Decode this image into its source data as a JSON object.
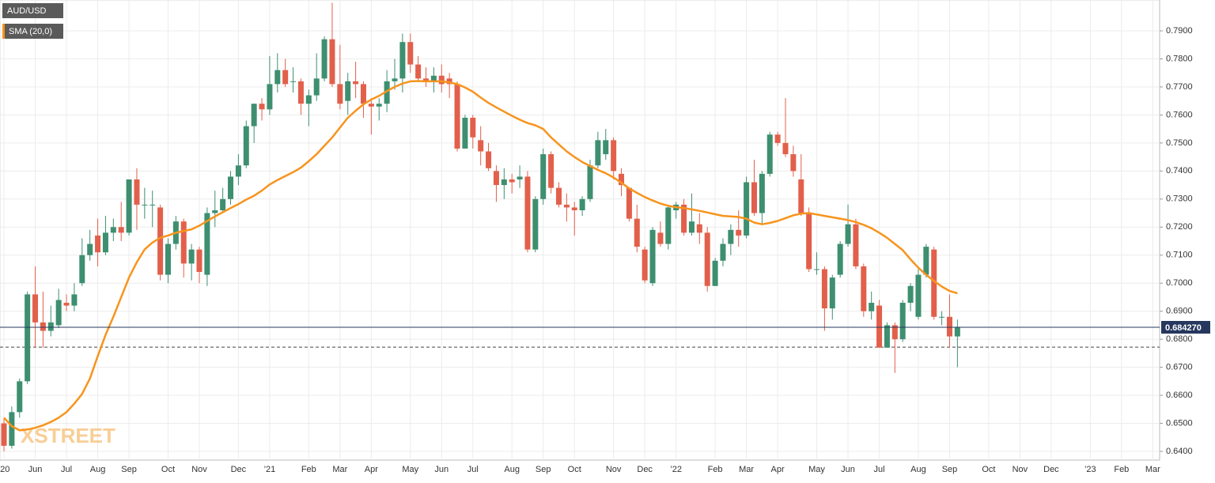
{
  "chart_data": {
    "type": "candlestick",
    "categories": [
      "’20",
      null,
      null,
      null,
      "Jun",
      null,
      null,
      null,
      "Jul",
      null,
      null,
      null,
      "Aug",
      null,
      null,
      null,
      "Sep",
      null,
      null,
      null,
      null,
      "Oct",
      null,
      null,
      null,
      "Nov",
      null,
      null,
      null,
      null,
      "Dec",
      null,
      null,
      null,
      "’21",
      null,
      null,
      null,
      null,
      "Feb",
      null,
      null,
      null,
      "Mar",
      null,
      null,
      null,
      "Apr",
      null,
      null,
      null,
      null,
      "May",
      null,
      null,
      null,
      "Jun",
      null,
      null,
      null,
      "Jul",
      null,
      null,
      null,
      null,
      "Aug",
      null,
      null,
      null,
      "Sep",
      null,
      null,
      null,
      "Oct",
      null,
      null,
      null,
      null,
      "Nov",
      null,
      null,
      null,
      "Dec",
      null,
      null,
      null,
      "’22",
      null,
      null,
      null,
      null,
      "Feb",
      null,
      null,
      null,
      "Mar",
      null,
      null,
      null,
      "Apr",
      null,
      null,
      null,
      null,
      "May",
      null,
      null,
      null,
      "Jun",
      null,
      null,
      null,
      "Jul",
      null,
      null,
      null,
      null,
      "Aug",
      null,
      null,
      null,
      "Sep",
      null,
      null,
      null,
      null,
      "Oct",
      null,
      null,
      null,
      "Nov",
      null,
      null,
      null,
      "Dec",
      null,
      null,
      null,
      null,
      "’23",
      null,
      null,
      null,
      "Feb",
      null,
      null,
      null,
      "Mar"
    ],
    "series": [
      {
        "name": "AUD/USD",
        "type": "candlestick",
        "up_color": "#3d8f70",
        "down_color": "#e2604b",
        "open": [
          0.65,
          0.642,
          0.654,
          0.665,
          0.696,
          0.686,
          0.683,
          0.685,
          0.693,
          0.692,
          0.7,
          0.71,
          0.717,
          0.711,
          0.718,
          0.72,
          0.718,
          0.737,
          0.728,
          0.728,
          0.727,
          0.703,
          0.714,
          0.722,
          0.707,
          0.712,
          0.703,
          0.725,
          0.726,
          0.73,
          0.738,
          0.742,
          0.756,
          0.764,
          0.762,
          0.771,
          0.776,
          0.772,
          0.772,
          0.764,
          0.767,
          0.773,
          0.787,
          0.771,
          0.765,
          0.772,
          0.771,
          0.764,
          0.763,
          0.764,
          0.772,
          0.773,
          0.786,
          0.778,
          0.773,
          0.772,
          0.774,
          0.773,
          0.771,
          0.748,
          0.759,
          0.751,
          0.747,
          0.74,
          0.735,
          0.737,
          0.737,
          0.738,
          0.712,
          0.73,
          0.746,
          0.734,
          0.728,
          0.727,
          0.726,
          0.73,
          0.742,
          0.746,
          0.751,
          0.739,
          0.734,
          0.723,
          0.712,
          0.7,
          0.718,
          0.714,
          0.726,
          0.728,
          0.718,
          0.721,
          0.718,
          0.699,
          0.708,
          0.714,
          0.719,
          0.717,
          0.736,
          0.725,
          0.739,
          0.753,
          0.75,
          0.746,
          0.737,
          0.725,
          0.705,
          0.705,
          0.691,
          0.703,
          0.714,
          0.721,
          0.706,
          0.69,
          0.692,
          0.677,
          0.685,
          0.68,
          0.693,
          0.688,
          0.703,
          0.712,
          0.688,
          0.688,
          0.681,
          null,
          null,
          null,
          null,
          null,
          null,
          null,
          null,
          null,
          null,
          null,
          null,
          null,
          null,
          null,
          null,
          null,
          null,
          null,
          null,
          null,
          null,
          null,
          null,
          null
        ],
        "high": [
          0.652,
          0.656,
          0.666,
          0.697,
          0.706,
          0.697,
          0.692,
          0.698,
          0.696,
          0.7,
          0.716,
          0.719,
          0.723,
          0.724,
          0.723,
          0.729,
          0.737,
          0.741,
          0.734,
          0.733,
          0.728,
          0.716,
          0.724,
          0.723,
          0.714,
          0.713,
          0.727,
          0.733,
          0.734,
          0.74,
          0.746,
          0.758,
          0.764,
          0.766,
          0.781,
          0.782,
          0.78,
          0.777,
          0.773,
          0.769,
          0.782,
          0.788,
          0.8,
          0.785,
          0.775,
          0.779,
          0.772,
          0.766,
          0.766,
          0.776,
          0.78,
          0.789,
          0.789,
          0.781,
          0.777,
          0.777,
          0.778,
          0.775,
          0.772,
          0.76,
          0.76,
          0.756,
          0.75,
          0.742,
          0.741,
          0.739,
          0.742,
          0.74,
          0.731,
          0.748,
          0.747,
          0.736,
          0.732,
          0.729,
          0.731,
          0.744,
          0.754,
          0.755,
          0.752,
          0.741,
          0.734,
          0.728,
          0.713,
          0.72,
          0.722,
          0.728,
          0.729,
          0.73,
          0.732,
          0.725,
          0.72,
          0.709,
          0.716,
          0.721,
          0.726,
          0.738,
          0.744,
          0.74,
          0.754,
          0.754,
          0.766,
          0.749,
          0.746,
          0.727,
          0.711,
          0.706,
          0.703,
          0.715,
          0.728,
          0.723,
          0.707,
          0.697,
          0.694,
          0.686,
          0.686,
          0.694,
          0.7,
          0.705,
          0.714,
          0.713,
          0.69,
          0.696,
          0.687,
          null,
          null,
          null,
          null,
          null,
          null,
          null,
          null,
          null,
          null,
          null,
          null,
          null,
          null,
          null,
          null,
          null,
          null,
          null,
          null,
          null,
          null,
          null,
          null,
          null
        ],
        "low": [
          0.64,
          0.641,
          0.652,
          0.664,
          0.677,
          0.677,
          0.681,
          0.684,
          0.69,
          0.69,
          0.699,
          0.708,
          0.706,
          0.71,
          0.715,
          0.715,
          0.717,
          0.719,
          0.723,
          0.72,
          0.701,
          0.7,
          0.712,
          0.702,
          0.701,
          0.7,
          0.699,
          0.72,
          0.725,
          0.728,
          0.735,
          0.741,
          0.75,
          0.758,
          0.76,
          0.768,
          0.77,
          0.768,
          0.76,
          0.756,
          0.765,
          0.772,
          0.77,
          0.762,
          0.76,
          0.766,
          0.759,
          0.753,
          0.758,
          0.761,
          0.769,
          0.768,
          0.775,
          0.772,
          0.77,
          0.768,
          0.768,
          0.766,
          0.747,
          0.748,
          0.748,
          0.742,
          0.74,
          0.729,
          0.73,
          0.732,
          0.734,
          0.711,
          0.711,
          0.728,
          0.732,
          0.727,
          0.722,
          0.717,
          0.724,
          0.729,
          0.741,
          0.744,
          0.737,
          0.731,
          0.722,
          0.711,
          0.7,
          0.699,
          0.713,
          0.712,
          0.723,
          0.717,
          0.717,
          0.714,
          0.697,
          0.699,
          0.706,
          0.71,
          0.713,
          0.716,
          0.724,
          0.721,
          0.738,
          0.749,
          0.745,
          0.738,
          0.724,
          0.704,
          0.703,
          0.683,
          0.687,
          0.702,
          0.713,
          0.705,
          0.688,
          0.687,
          0.677,
          0.677,
          0.668,
          0.679,
          0.69,
          0.687,
          0.702,
          0.687,
          0.685,
          0.677,
          0.67,
          null,
          null,
          null,
          null,
          null,
          null,
          null,
          null,
          null,
          null,
          null,
          null,
          null,
          null,
          null,
          null,
          null,
          null,
          null,
          null,
          null,
          null,
          null,
          null,
          null
        ],
        "close": [
          0.642,
          0.654,
          0.665,
          0.696,
          0.686,
          0.683,
          0.686,
          0.694,
          0.692,
          0.696,
          0.71,
          0.714,
          0.711,
          0.718,
          0.72,
          0.718,
          0.737,
          0.728,
          0.728,
          0.728,
          0.703,
          0.714,
          0.722,
          0.707,
          0.712,
          0.704,
          0.725,
          0.726,
          0.73,
          0.738,
          0.742,
          0.756,
          0.764,
          0.762,
          0.771,
          0.776,
          0.771,
          0.772,
          0.764,
          0.767,
          0.773,
          0.787,
          0.771,
          0.764,
          0.772,
          0.771,
          0.764,
          0.763,
          0.764,
          0.772,
          0.773,
          0.786,
          0.778,
          0.773,
          0.772,
          0.774,
          0.771,
          0.771,
          0.748,
          0.759,
          0.752,
          0.747,
          0.741,
          0.735,
          0.737,
          0.736,
          0.738,
          0.712,
          0.73,
          0.746,
          0.734,
          0.728,
          0.727,
          0.726,
          0.73,
          0.742,
          0.751,
          0.751,
          0.74,
          0.735,
          0.723,
          0.713,
          0.701,
          0.719,
          0.714,
          0.727,
          0.728,
          0.718,
          0.722,
          0.718,
          0.699,
          0.708,
          0.714,
          0.719,
          0.717,
          0.736,
          0.725,
          0.739,
          0.753,
          0.75,
          0.746,
          0.74,
          0.725,
          0.705,
          0.705,
          0.691,
          0.702,
          0.714,
          0.721,
          0.706,
          0.69,
          0.693,
          0.677,
          0.685,
          0.68,
          0.693,
          0.699,
          0.703,
          0.713,
          0.688,
          0.688,
          0.681,
          0.68427,
          null,
          null,
          null,
          null,
          null,
          null,
          null,
          null,
          null,
          null,
          null,
          null,
          null,
          null,
          null,
          null,
          null,
          null,
          null,
          null,
          null,
          null,
          null,
          null,
          null
        ]
      },
      {
        "name": "SMA (20,0)",
        "type": "line",
        "color": "#f7941d",
        "values": [
          0.652,
          0.649,
          0.6475,
          0.6478,
          0.6484,
          0.6493,
          0.6505,
          0.652,
          0.654,
          0.657,
          0.6605,
          0.666,
          0.674,
          0.6815,
          0.688,
          0.695,
          0.702,
          0.7075,
          0.712,
          0.7145,
          0.7162,
          0.717,
          0.718,
          0.7186,
          0.7192,
          0.7205,
          0.7222,
          0.7238,
          0.7253,
          0.7268,
          0.7282,
          0.7298,
          0.7312,
          0.733,
          0.7352,
          0.7368,
          0.7382,
          0.7396,
          0.7412,
          0.7435,
          0.746,
          0.749,
          0.752,
          0.7555,
          0.759,
          0.7615,
          0.7638,
          0.7655,
          0.7668,
          0.7685,
          0.77,
          0.7712,
          0.772,
          0.7721,
          0.772,
          0.772,
          0.772,
          0.7716,
          0.771,
          0.7698,
          0.7683,
          0.7662,
          0.7643,
          0.7627,
          0.7612,
          0.7597,
          0.7583,
          0.7571,
          0.7563,
          0.755,
          0.752,
          0.7495,
          0.747,
          0.745,
          0.7432,
          0.7418,
          0.7404,
          0.7392,
          0.7377,
          0.7358,
          0.7338,
          0.7322,
          0.7307,
          0.7295,
          0.7284,
          0.7276,
          0.7271,
          0.7268,
          0.7263,
          0.7258,
          0.7252,
          0.7246,
          0.724,
          0.7238,
          0.7236,
          0.723,
          0.7216,
          0.721,
          0.7215,
          0.7222,
          0.7232,
          0.7242,
          0.7248,
          0.725,
          0.7245,
          0.724,
          0.7235,
          0.723,
          0.7225,
          0.7218,
          0.7208,
          0.7196,
          0.718,
          0.7162,
          0.714,
          0.7118,
          0.7085,
          0.7055,
          0.703,
          0.7008,
          0.6988,
          0.6972,
          0.6964,
          null,
          null,
          null,
          null,
          null,
          null,
          null,
          null,
          null,
          null,
          null,
          null,
          null,
          null,
          null,
          null,
          null,
          null,
          null,
          null,
          null,
          null,
          null,
          null,
          null
        ]
      }
    ],
    "ylim": [
      0.6369,
      0.801
    ],
    "yticks": [
      {
        "value": 0.64,
        "label": "0.6400"
      },
      {
        "value": 0.65,
        "label": "0.6500"
      },
      {
        "value": 0.66,
        "label": "0.6600"
      },
      {
        "value": 0.67,
        "label": "0.6700"
      },
      {
        "value": 0.68,
        "label": "0.6800"
      },
      {
        "value": 0.69,
        "label": "0.6900"
      },
      {
        "value": 0.7,
        "label": "0.7000"
      },
      {
        "value": 0.71,
        "label": "0.7100"
      },
      {
        "value": 0.72,
        "label": "0.7200"
      },
      {
        "value": 0.73,
        "label": "0.7300"
      },
      {
        "value": 0.74,
        "label": "0.7400"
      },
      {
        "value": 0.75,
        "label": "0.7500"
      },
      {
        "value": 0.76,
        "label": "0.7600"
      },
      {
        "value": 0.77,
        "label": "0.7700"
      },
      {
        "value": 0.78,
        "label": "0.7800"
      },
      {
        "value": 0.79,
        "label": "0.7900"
      }
    ],
    "grid": true,
    "price_line": {
      "value": 0.68427,
      "label": "0.684270",
      "color": "#26375e"
    },
    "level_line": 0.6772,
    "watermark": "XSTREET"
  }
}
